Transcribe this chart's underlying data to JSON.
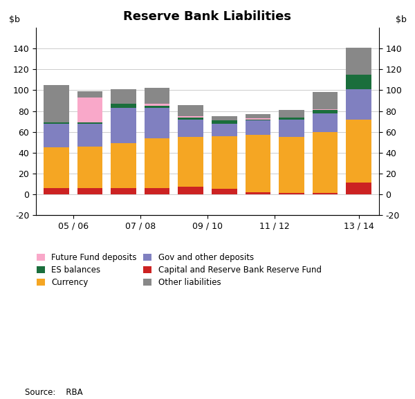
{
  "title": "Reserve Bank Liabilities",
  "source": "Source:    RBA",
  "ylim": [
    -20,
    160
  ],
  "yticks": [
    -20,
    0,
    20,
    40,
    60,
    80,
    100,
    120,
    140
  ],
  "bar_positions": [
    0,
    1,
    2,
    3,
    4,
    5,
    6,
    7,
    8,
    9
  ],
  "xtick_positions": [
    0.5,
    2.5,
    4.5,
    6.5,
    9
  ],
  "xtick_labels": [
    "05 / 06",
    "07 / 08",
    "09 / 10",
    "11 / 12",
    "13 / 14"
  ],
  "bars": {
    "capital": [
      6,
      6,
      6,
      6,
      7,
      5,
      2,
      1,
      1,
      11
    ],
    "currency": [
      39,
      40,
      43,
      48,
      48,
      51,
      55,
      54,
      59,
      61
    ],
    "gov_deposits": [
      23,
      22,
      34,
      29,
      17,
      12,
      14,
      17,
      18,
      29
    ],
    "es_balances": [
      1,
      1,
      4,
      2,
      2,
      3,
      1,
      2,
      3,
      14
    ],
    "future_fund": [
      0,
      24,
      0,
      0,
      0,
      0,
      0,
      0,
      0,
      0
    ],
    "pink_small": [
      0,
      0,
      0,
      2,
      1,
      0,
      1,
      0,
      1,
      0
    ],
    "other": [
      36,
      6,
      14,
      15,
      11,
      4,
      4,
      7,
      16,
      26
    ]
  },
  "colors": {
    "capital": "#cc2222",
    "currency": "#f5a623",
    "gov_deposits": "#8080c0",
    "es_balances": "#1a6e3c",
    "future_fund": "#f9a8c9",
    "pink_small": "#f9a8c9",
    "other": "#888888"
  },
  "legend": [
    {
      "label": "Future Fund deposits",
      "color": "#f9a8c9"
    },
    {
      "label": "ES balances",
      "color": "#1a6e3c"
    },
    {
      "label": "Currency",
      "color": "#f5a623"
    },
    {
      "label": "Gov and other deposits",
      "color": "#8080c0"
    },
    {
      "label": "Capital and Reserve Bank Reserve Fund",
      "color": "#cc2222"
    },
    {
      "label": "Other liabilities",
      "color": "#888888"
    }
  ],
  "background_color": "#ffffff",
  "grid_color": "#cccccc",
  "bar_width": 0.75
}
